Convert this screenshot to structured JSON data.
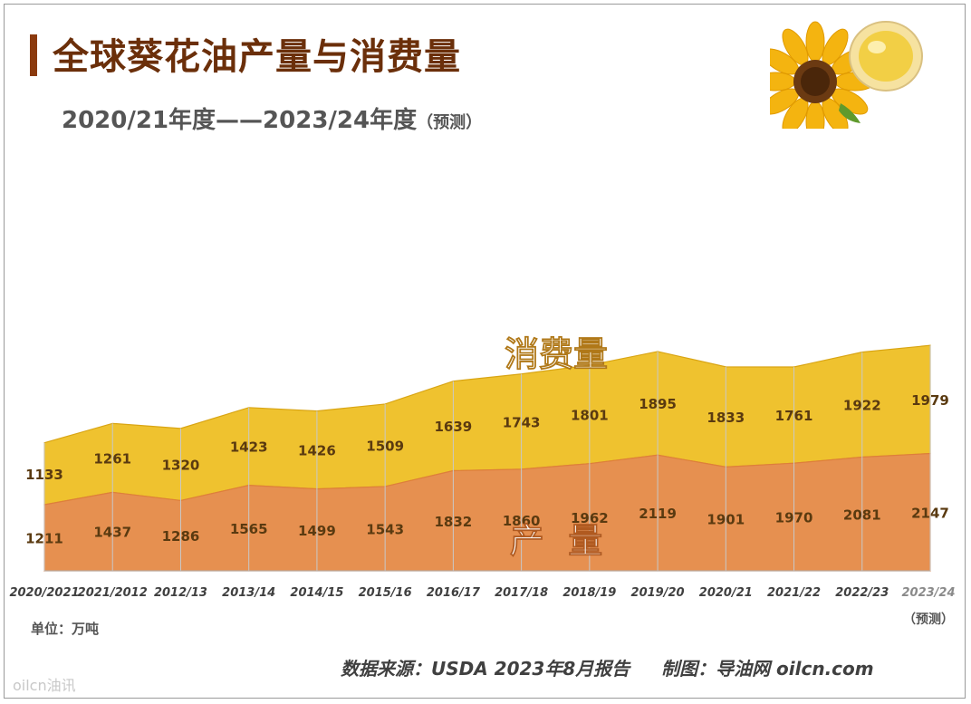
{
  "header": {
    "title": "全球葵花油产量与消费量",
    "subtitle": "2020/21年度——2023/24年度",
    "subtitle_note": "（预测）"
  },
  "footer": {
    "unit": "单位：万吨",
    "source": "数据来源：USDA 2023年8月报告     制图：导油网 oilcn.com",
    "watermark": "oilcn油讯"
  },
  "chart_data": {
    "type": "area",
    "stacked": true,
    "categories": [
      "2020/2021",
      "2021/2012",
      "2012/13",
      "2013/14",
      "2014/15",
      "2015/16",
      "2016/17",
      "2017/18",
      "2018/19",
      "2019/20",
      "2020/21",
      "2021/22",
      "2022/23",
      "2023/24"
    ],
    "forecast_note": "（预测）",
    "series": [
      {
        "name": "产  量",
        "values": [
          1211,
          1437,
          1286,
          1565,
          1499,
          1543,
          1832,
          1860,
          1962,
          2119,
          1901,
          1970,
          2081,
          2147
        ],
        "color": "#e69050"
      },
      {
        "name": "消费量",
        "values": [
          1133,
          1261,
          1320,
          1423,
          1426,
          1509,
          1639,
          1743,
          1801,
          1895,
          1833,
          1761,
          1922,
          1979
        ],
        "color": "#efc22f"
      }
    ],
    "colors": {
      "grid": "#c8c8c8",
      "value_label": "#5a3a10",
      "series_label": "#ffffff"
    }
  }
}
